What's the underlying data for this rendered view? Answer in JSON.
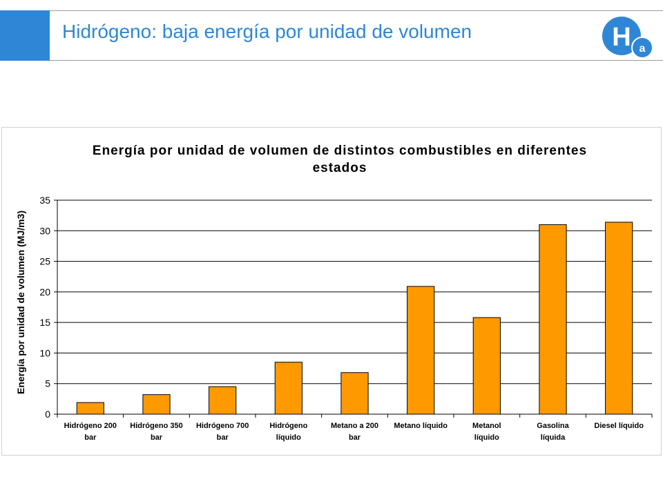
{
  "slide": {
    "title": "Hidrógeno: baja energía por unidad de volumen",
    "logo_letter": "H",
    "logo_subscript": "a",
    "accent_color": "#2f86d6"
  },
  "chart_data": {
    "type": "bar",
    "title_lines": [
      "Energía por unidad de volumen de distintos combustibles en diferentes",
      "estados"
    ],
    "xlabel": "",
    "ylabel": "Energía por unidad de volumen (MJ/m3)",
    "ylim": [
      0,
      35
    ],
    "yticks": [
      0,
      5,
      10,
      15,
      20,
      25,
      30,
      35
    ],
    "grid": true,
    "legend": "none",
    "bar_color": "#ff9900",
    "categories": [
      [
        "Hidrógeno 200",
        "bar"
      ],
      [
        "Hidrógeno 350",
        "bar"
      ],
      [
        "Hidrógeno 700",
        "bar"
      ],
      [
        "Hidrógeno",
        "líquido"
      ],
      [
        "Metano a 200",
        "bar"
      ],
      [
        "Metano líquido"
      ],
      [
        "Metanol",
        "líquido"
      ],
      [
        "Gasolina",
        "líquida"
      ],
      [
        "Diesel líquido"
      ]
    ],
    "values": [
      1.9,
      3.2,
      4.5,
      8.5,
      6.8,
      20.9,
      15.8,
      31.0,
      31.4
    ]
  }
}
